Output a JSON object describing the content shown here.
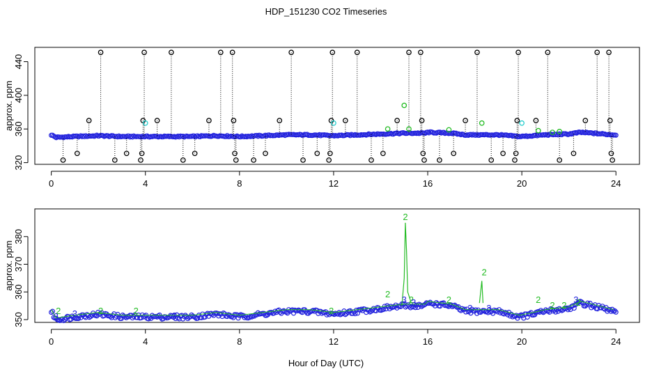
{
  "chart_data": [
    {
      "type": "scatter",
      "title": "HDP_151230  CO2 Timeseries",
      "xlabel": "",
      "ylabel": "approx. ppm",
      "xlim": [
        -0.7,
        25
      ],
      "ylim": [
        318,
        457
      ],
      "xticks": [
        0,
        4,
        8,
        12,
        16,
        20,
        24
      ],
      "yticks": [
        320,
        360,
        400,
        440
      ],
      "baseline": [
        [
          0,
          353
        ],
        [
          0.2,
          350
        ],
        [
          1,
          351
        ],
        [
          2,
          352
        ],
        [
          3,
          351
        ],
        [
          4,
          351
        ],
        [
          5,
          351
        ],
        [
          6,
          351
        ],
        [
          7,
          352
        ],
        [
          8,
          351
        ],
        [
          9,
          352
        ],
        [
          10,
          353
        ],
        [
          11,
          353
        ],
        [
          12,
          352
        ],
        [
          13,
          353
        ],
        [
          14,
          354
        ],
        [
          15,
          355
        ],
        [
          15.9,
          355
        ],
        [
          16,
          356
        ],
        [
          17,
          355
        ],
        [
          17.6,
          353
        ],
        [
          18,
          353
        ],
        [
          19,
          353
        ],
        [
          19.9,
          351
        ],
        [
          20.5,
          352
        ],
        [
          21,
          353
        ],
        [
          22,
          354
        ],
        [
          22.5,
          356
        ],
        [
          23,
          355
        ],
        [
          23.9,
          353
        ]
      ],
      "outliers": [
        {
          "x": 0.5,
          "y": 323
        },
        {
          "x": 1.1,
          "y": 331
        },
        {
          "x": 1.6,
          "y": 370
        },
        {
          "x": 2.1,
          "y": 451
        },
        {
          "x": 2.7,
          "y": 323
        },
        {
          "x": 3.2,
          "y": 331
        },
        {
          "x": 3.8,
          "y": 323
        },
        {
          "x": 3.85,
          "y": 331
        },
        {
          "x": 3.9,
          "y": 370
        },
        {
          "x": 3.95,
          "y": 451
        },
        {
          "x": 4.5,
          "y": 370
        },
        {
          "x": 5.1,
          "y": 451
        },
        {
          "x": 5.6,
          "y": 323
        },
        {
          "x": 6.1,
          "y": 331
        },
        {
          "x": 6.7,
          "y": 370
        },
        {
          "x": 7.2,
          "y": 451
        },
        {
          "x": 7.7,
          "y": 451
        },
        {
          "x": 7.75,
          "y": 370
        },
        {
          "x": 7.8,
          "y": 331
        },
        {
          "x": 7.85,
          "y": 323
        },
        {
          "x": 8.6,
          "y": 323
        },
        {
          "x": 9.1,
          "y": 331
        },
        {
          "x": 9.7,
          "y": 370
        },
        {
          "x": 10.2,
          "y": 451
        },
        {
          "x": 10.7,
          "y": 323
        },
        {
          "x": 11.3,
          "y": 331
        },
        {
          "x": 11.8,
          "y": 323
        },
        {
          "x": 11.85,
          "y": 331
        },
        {
          "x": 11.9,
          "y": 370
        },
        {
          "x": 11.95,
          "y": 451
        },
        {
          "x": 12.5,
          "y": 370
        },
        {
          "x": 13.0,
          "y": 451
        },
        {
          "x": 13.6,
          "y": 323
        },
        {
          "x": 14.1,
          "y": 331
        },
        {
          "x": 14.7,
          "y": 370
        },
        {
          "x": 15.2,
          "y": 451
        },
        {
          "x": 15.7,
          "y": 451
        },
        {
          "x": 15.75,
          "y": 370
        },
        {
          "x": 15.8,
          "y": 331
        },
        {
          "x": 15.85,
          "y": 323
        },
        {
          "x": 16.5,
          "y": 323
        },
        {
          "x": 17.1,
          "y": 331
        },
        {
          "x": 17.6,
          "y": 370
        },
        {
          "x": 18.1,
          "y": 451
        },
        {
          "x": 18.7,
          "y": 323
        },
        {
          "x": 19.2,
          "y": 331
        },
        {
          "x": 19.7,
          "y": 323
        },
        {
          "x": 19.75,
          "y": 331
        },
        {
          "x": 19.8,
          "y": 370
        },
        {
          "x": 19.85,
          "y": 451
        },
        {
          "x": 20.6,
          "y": 370
        },
        {
          "x": 21.1,
          "y": 451
        },
        {
          "x": 21.6,
          "y": 323
        },
        {
          "x": 22.2,
          "y": 331
        },
        {
          "x": 22.7,
          "y": 370
        },
        {
          "x": 23.2,
          "y": 451
        },
        {
          "x": 23.7,
          "y": 451
        },
        {
          "x": 23.75,
          "y": 370
        },
        {
          "x": 23.8,
          "y": 331
        },
        {
          "x": 23.85,
          "y": 323
        }
      ],
      "green_points": [
        {
          "x": 14.3,
          "y": 360
        },
        {
          "x": 15.0,
          "y": 388
        },
        {
          "x": 15.2,
          "y": 360
        },
        {
          "x": 16.9,
          "y": 359
        },
        {
          "x": 18.3,
          "y": 367
        },
        {
          "x": 20.7,
          "y": 358
        },
        {
          "x": 21.3,
          "y": 356
        },
        {
          "x": 21.6,
          "y": 357
        }
      ],
      "cyan_points": [
        {
          "x": 4.0,
          "y": 367
        },
        {
          "x": 12.0,
          "y": 367
        },
        {
          "x": 20.0,
          "y": 367
        }
      ]
    },
    {
      "type": "scatter",
      "title": "",
      "xlabel": "Hour of Day (UTC)",
      "ylabel": "approx. ppm",
      "xlim": [
        -0.7,
        25
      ],
      "ylim": [
        349,
        390
      ],
      "xticks": [
        0,
        4,
        8,
        12,
        16,
        20,
        24
      ],
      "yticks": [
        350,
        360,
        370,
        380
      ],
      "baseline": [
        [
          0,
          353
        ],
        [
          0.2,
          350
        ],
        [
          1,
          351
        ],
        [
          2,
          352
        ],
        [
          3,
          351
        ],
        [
          4,
          351
        ],
        [
          5,
          351
        ],
        [
          6,
          351
        ],
        [
          7,
          352
        ],
        [
          8,
          351
        ],
        [
          9,
          352
        ],
        [
          10,
          353
        ],
        [
          11,
          353
        ],
        [
          12,
          352
        ],
        [
          13,
          353
        ],
        [
          14,
          354
        ],
        [
          15,
          355
        ],
        [
          15.9,
          355
        ],
        [
          16,
          356
        ],
        [
          17,
          355
        ],
        [
          17.6,
          353
        ],
        [
          18,
          353
        ],
        [
          19,
          353
        ],
        [
          19.9,
          351
        ],
        [
          20.5,
          352
        ],
        [
          21,
          353
        ],
        [
          22,
          354
        ],
        [
          22.5,
          356
        ],
        [
          23,
          355
        ],
        [
          23.9,
          353
        ]
      ],
      "spike_line": [
        [
          14.9,
          355
        ],
        [
          15.0,
          365
        ],
        [
          15.05,
          385
        ],
        [
          15.1,
          375
        ],
        [
          15.15,
          360
        ],
        [
          15.3,
          356
        ],
        [
          18.2,
          356
        ],
        [
          18.3,
          364
        ],
        [
          18.35,
          356
        ]
      ],
      "labels_2": [
        {
          "x": 0.3,
          "y": 353
        },
        {
          "x": 2.1,
          "y": 353
        },
        {
          "x": 3.6,
          "y": 353
        },
        {
          "x": 11.9,
          "y": 353
        },
        {
          "x": 14.3,
          "y": 359
        },
        {
          "x": 15.05,
          "y": 387
        },
        {
          "x": 15.3,
          "y": 357
        },
        {
          "x": 16.9,
          "y": 357
        },
        {
          "x": 18.4,
          "y": 367
        },
        {
          "x": 20.7,
          "y": 357
        },
        {
          "x": 21.3,
          "y": 355
        },
        {
          "x": 21.8,
          "y": 355
        },
        {
          "x": 22.4,
          "y": 356
        }
      ],
      "labels_3": [
        {
          "x": 0.2,
          "y": 351
        },
        {
          "x": 1.0,
          "y": 352
        },
        {
          "x": 5.2,
          "y": 351
        },
        {
          "x": 15.0,
          "y": 357
        },
        {
          "x": 15.4,
          "y": 356
        },
        {
          "x": 17.8,
          "y": 354
        },
        {
          "x": 18.6,
          "y": 354
        },
        {
          "x": 22.3,
          "y": 357
        }
      ]
    }
  ]
}
